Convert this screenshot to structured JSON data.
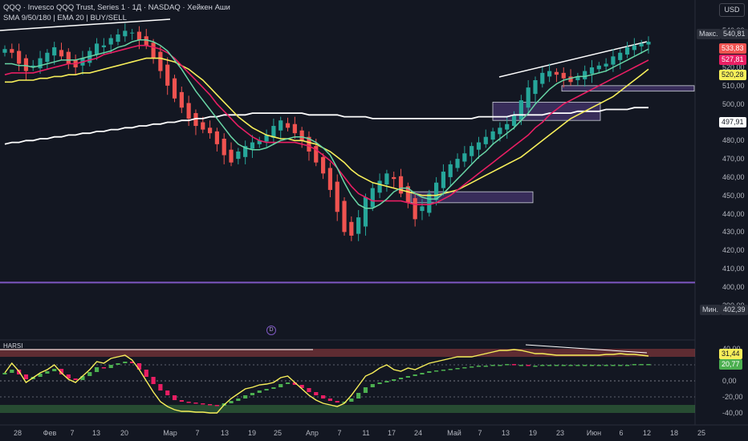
{
  "header": {
    "title": "QQQ · Invesco QQQ Trust, Series 1 · 1Д · NASDAQ · Хейкен Аши",
    "indicators": "SMA 9/50/180 | EMA 20 | BUY/SELL",
    "currency": "USD",
    "osc_label": "HARSI",
    "d_marker": "D"
  },
  "colors": {
    "background": "#131722",
    "bull": "#26a69a",
    "bear": "#ef5350",
    "sma9": "#69d6a6",
    "sma50": "#f7ef5a",
    "sma180": "#ffffff",
    "ema20": "#e91e63",
    "osc_bull": "#4caf50",
    "osc_bear": "#e91e63",
    "zone": "#7e57c2"
  },
  "price_axis": {
    "ticks": [
      "540,00",
      "530,00",
      "520,00",
      "510,00",
      "500,00",
      "490,00",
      "480,00",
      "470,00",
      "460,00",
      "450,00",
      "440,00",
      "430,00",
      "420,00",
      "410,00",
      "400,00",
      "390,00"
    ],
    "ylim": [
      385,
      545
    ]
  },
  "osc_axis": {
    "ticks": [
      "40,00",
      "20,00",
      "0,00",
      "-20,00",
      "-40,00"
    ],
    "ylim": [
      -45,
      45
    ]
  },
  "price_tags": {
    "max_label": "Макс.",
    "max_value": "540,81",
    "min_label": "Мин.",
    "min_value": "402,39",
    "t1": "533,83",
    "t2": "527,81",
    "t3": "520,28",
    "t4": "497,91"
  },
  "osc_tags": {
    "t1": "31,44",
    "t2": "20,77"
  },
  "x_axis": {
    "labels": [
      "28",
      "Фев",
      "7",
      "13",
      "20",
      "Мар",
      "7",
      "13",
      "19",
      "25",
      "Апр",
      "7",
      "11",
      "17",
      "24",
      "Май",
      "7",
      "13",
      "19",
      "23",
      "Июн",
      "6",
      "12",
      "18",
      "25"
    ]
  },
  "chart_data": {
    "type": "candlestick",
    "ylim": [
      385,
      545
    ],
    "candle_close": [
      530,
      528,
      522,
      518,
      521,
      525,
      528,
      531,
      526,
      522,
      520,
      525,
      529,
      533,
      532,
      536,
      538,
      540,
      539,
      535,
      532,
      525,
      518,
      510,
      503,
      498,
      492,
      488,
      486,
      484,
      478,
      472,
      468,
      474,
      477,
      479,
      480,
      483,
      488,
      491,
      487,
      484,
      480,
      474,
      468,
      462,
      453,
      441,
      430,
      428,
      438,
      449,
      454,
      458,
      462,
      459,
      451,
      446,
      437,
      444,
      451,
      457,
      463,
      467,
      470,
      473,
      477,
      479,
      482,
      485,
      487,
      489,
      494,
      502,
      509,
      513,
      517,
      518,
      516,
      514,
      512,
      515,
      518,
      520,
      521,
      522,
      526,
      528,
      531,
      532,
      533,
      534
    ],
    "sma9": [
      522,
      522,
      521,
      521,
      520,
      521,
      522,
      523,
      524,
      524,
      524,
      525,
      526,
      527,
      528,
      529,
      531,
      532,
      534,
      535,
      535,
      534,
      532,
      529,
      524,
      519,
      513,
      507,
      502,
      497,
      492,
      487,
      482,
      478,
      476,
      475,
      475,
      476,
      478,
      480,
      481,
      482,
      482,
      481,
      479,
      476,
      472,
      465,
      457,
      450,
      445,
      443,
      443,
      445,
      448,
      452,
      454,
      454,
      451,
      449,
      448,
      448,
      451,
      455,
      459,
      463,
      467,
      471,
      474,
      478,
      481,
      484,
      487,
      491,
      495,
      500,
      504,
      508,
      511,
      513,
      514,
      515,
      515,
      516,
      517,
      518,
      520,
      522,
      524,
      526,
      528,
      530
    ],
    "ema20": [
      516,
      517,
      517,
      517,
      517,
      518,
      519,
      520,
      521,
      522,
      522,
      523,
      524,
      525,
      527,
      528,
      529,
      530,
      531,
      532,
      532,
      531,
      530,
      528,
      525,
      521,
      517,
      513,
      509,
      505,
      500,
      496,
      492,
      488,
      485,
      482,
      480,
      479,
      479,
      479,
      479,
      479,
      478,
      477,
      475,
      472,
      469,
      465,
      460,
      455,
      451,
      449,
      447,
      447,
      447,
      447,
      447,
      446,
      445,
      445,
      445,
      446,
      448,
      450,
      453,
      456,
      459,
      462,
      465,
      468,
      471,
      474,
      477,
      480,
      483,
      487,
      490,
      494,
      497,
      500,
      502,
      504,
      506,
      508,
      510,
      512,
      514,
      516,
      518,
      520,
      522,
      524
    ],
    "sma50": [
      512,
      512,
      513,
      513,
      513,
      514,
      514,
      515,
      515,
      516,
      516,
      517,
      517,
      518,
      519,
      520,
      521,
      522,
      523,
      524,
      525,
      525,
      525,
      524,
      523,
      521,
      519,
      516,
      513,
      509,
      505,
      501,
      497,
      493,
      490,
      487,
      485,
      483,
      482,
      481,
      481,
      480,
      480,
      479,
      478,
      476,
      474,
      471,
      468,
      464,
      461,
      459,
      457,
      456,
      455,
      454,
      453,
      452,
      451,
      450,
      450,
      450,
      451,
      452,
      453,
      455,
      457,
      459,
      461,
      463,
      465,
      467,
      469,
      471,
      474,
      477,
      480,
      483,
      486,
      489,
      492,
      494,
      496,
      498,
      500,
      502,
      504,
      507,
      510,
      513,
      516,
      519
    ],
    "sma180": [
      478,
      479,
      479,
      480,
      480,
      481,
      481,
      482,
      482,
      483,
      483,
      484,
      484,
      485,
      485,
      486,
      486,
      487,
      487,
      488,
      488,
      489,
      489,
      490,
      490,
      491,
      491,
      492,
      492,
      493,
      493,
      494,
      494,
      494,
      494,
      495,
      495,
      495,
      495,
      495,
      495,
      495,
      495,
      494,
      494,
      494,
      494,
      494,
      493,
      493,
      493,
      493,
      492,
      492,
      492,
      492,
      492,
      492,
      492,
      492,
      492,
      492,
      492,
      492,
      492,
      492,
      492,
      493,
      493,
      493,
      493,
      493,
      494,
      494,
      494,
      494,
      494,
      495,
      495,
      495,
      495,
      496,
      496,
      496,
      496,
      497,
      497,
      497,
      497,
      498,
      498,
      498
    ],
    "harsi": [
      10,
      14,
      8,
      2,
      5,
      9,
      12,
      15,
      8,
      3,
      1,
      6,
      11,
      17,
      16,
      20,
      22,
      24,
      22,
      14,
      5,
      -4,
      -12,
      -18,
      -24,
      -26,
      -27,
      -28,
      -29,
      -30,
      -31,
      -28,
      -25,
      -22,
      -18,
      -15,
      -12,
      -10,
      -8,
      -4,
      -2,
      -5,
      -9,
      -14,
      -18,
      -22,
      -25,
      -27,
      -26,
      -22,
      -15,
      -8,
      -4,
      -2,
      0,
      2,
      4,
      6,
      8,
      10,
      12,
      13,
      14,
      15,
      16,
      17,
      18,
      19,
      19,
      20,
      20,
      21,
      20,
      20,
      19,
      19,
      20,
      20,
      20,
      20,
      20,
      20,
      20,
      20,
      20,
      20,
      20,
      20,
      20,
      21,
      21,
      21
    ],
    "rsi": [
      10,
      22,
      12,
      -2,
      4,
      10,
      14,
      20,
      10,
      2,
      -2,
      6,
      14,
      24,
      22,
      28,
      30,
      32,
      26,
      14,
      0,
      -14,
      -26,
      -32,
      -36,
      -38,
      -38,
      -39,
      -39,
      -40,
      -40,
      -30,
      -22,
      -16,
      -10,
      -8,
      -5,
      -4,
      -2,
      4,
      6,
      -2,
      -10,
      -18,
      -24,
      -28,
      -30,
      -32,
      -28,
      -18,
      -6,
      6,
      10,
      16,
      20,
      14,
      12,
      16,
      14,
      18,
      22,
      24,
      26,
      28,
      30,
      30,
      30,
      32,
      34,
      36,
      38,
      38,
      39,
      38,
      36,
      34,
      34,
      33,
      32,
      32,
      32,
      32,
      32,
      32,
      32,
      33,
      33,
      34,
      33,
      33,
      32,
      31
    ]
  }
}
